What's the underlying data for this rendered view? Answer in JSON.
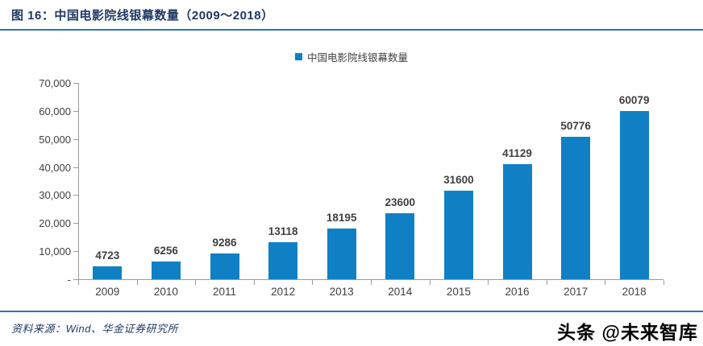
{
  "header": {
    "title": "图 16：中国电影院线银幕数量（2009～2018）"
  },
  "footer": {
    "source": "资料来源：Wind、华金证券研究所",
    "watermark": "头条 @未来智库"
  },
  "colors": {
    "bar": "#1080c5",
    "accent_line": "#2e75b6",
    "title_text": "#1f3864",
    "label_text": "#404040",
    "axis_line": "#9b9b9b"
  },
  "chart_data": {
    "type": "bar",
    "legend": "中国电影院线银幕数量",
    "legend_position": "top-center",
    "categories": [
      "2009",
      "2010",
      "2011",
      "2012",
      "2013",
      "2014",
      "2015",
      "2016",
      "2017",
      "2018"
    ],
    "values": [
      4723,
      6256,
      9286,
      13118,
      18195,
      23600,
      31600,
      41129,
      50776,
      60079
    ],
    "value_labels": [
      "4723",
      "6256",
      "9286",
      "13118",
      "18195",
      "23600",
      "31600",
      "41129",
      "50776",
      "60079"
    ],
    "xlabel": "",
    "ylabel": "",
    "ylim": [
      0,
      70000
    ],
    "ytick_interval": 10000,
    "ytick_labels_top_to_bottom": [
      "70,000",
      "60,000",
      "50,000",
      "40,000",
      "30,000",
      "20,000",
      "10,000",
      "-"
    ],
    "grid": false
  }
}
